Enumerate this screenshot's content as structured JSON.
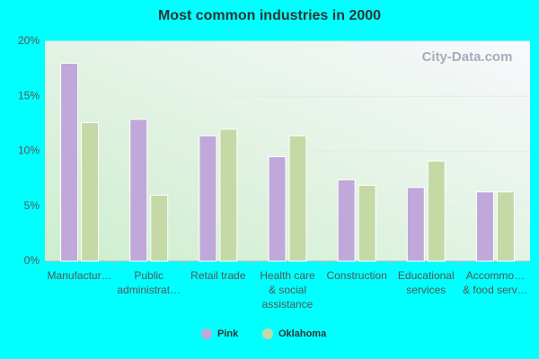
{
  "chart_data": {
    "type": "bar",
    "title": "Most common industries in 2000",
    "watermark": "City-Data.com",
    "categories": [
      [
        "Manufactur…"
      ],
      [
        "Public",
        "administrat…"
      ],
      [
        "Retail trade"
      ],
      [
        "Health care",
        "& social",
        "assistance"
      ],
      [
        "Construction"
      ],
      [
        "Educational",
        "services"
      ],
      [
        "Accommo…",
        "& food serv…"
      ]
    ],
    "series": [
      {
        "name": "Pink",
        "color": "#c0a8da",
        "values": [
          18,
          12.9,
          11.4,
          9.5,
          7.4,
          6.7,
          6.3
        ]
      },
      {
        "name": "Oklahoma",
        "color": "#c5d9a6",
        "values": [
          12.6,
          6.0,
          12.0,
          11.4,
          6.9,
          9.1,
          6.3
        ]
      }
    ],
    "ylim": [
      0,
      20
    ],
    "yticks": [
      {
        "value": 0,
        "label": "0%"
      },
      {
        "value": 5,
        "label": "5%"
      },
      {
        "value": 10,
        "label": "10%"
      },
      {
        "value": 15,
        "label": "15%"
      },
      {
        "value": 20,
        "label": "20%"
      }
    ],
    "grid": true,
    "legend": "bottom"
  }
}
